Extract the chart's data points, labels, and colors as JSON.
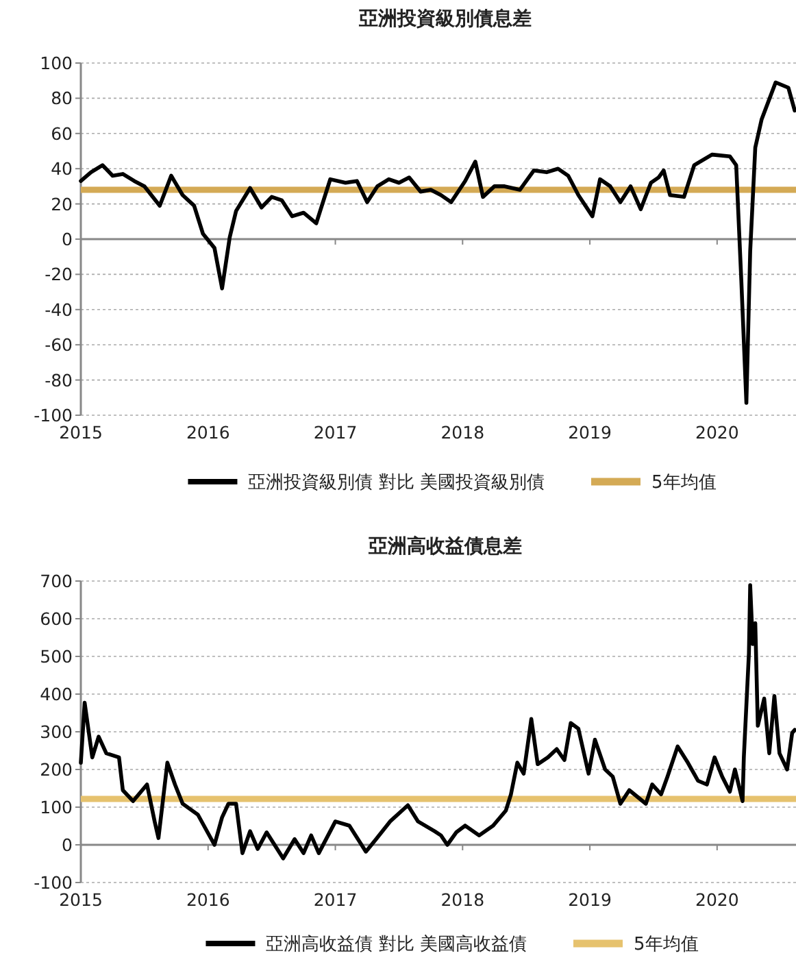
{
  "chart_data": [
    {
      "type": "line",
      "title": "亞洲投資級別債息差",
      "series": [
        {
          "name": "亞洲投資級別債 對比 美國投資級別債",
          "color": "#000000",
          "x": [
            2015.0,
            2015.08,
            2015.17,
            2015.25,
            2015.33,
            2015.42,
            2015.5,
            2015.62,
            2015.71,
            2015.8,
            2015.89,
            2015.96,
            2016.05,
            2016.11,
            2016.17,
            2016.22,
            2016.33,
            2016.42,
            2016.5,
            2016.58,
            2016.66,
            2016.75,
            2016.85,
            2016.96,
            2017.08,
            2017.17,
            2017.25,
            2017.33,
            2017.42,
            2017.5,
            2017.58,
            2017.67,
            2017.75,
            2017.83,
            2017.91,
            2018.02,
            2018.1,
            2018.16,
            2018.25,
            2018.33,
            2018.45,
            2018.56,
            2018.66,
            2018.75,
            2018.83,
            2018.91,
            2019.02,
            2019.08,
            2019.16,
            2019.24,
            2019.32,
            2019.4,
            2019.48,
            2019.54,
            2019.58,
            2019.63,
            2019.74,
            2019.82,
            2019.96,
            2020.1,
            2020.15,
            2020.19,
            2020.23,
            2020.26,
            2020.3,
            2020.35,
            2020.46,
            2020.56,
            2020.61
          ],
          "values": [
            33,
            38,
            42,
            36,
            37,
            33,
            30,
            19,
            36,
            25,
            19,
            3,
            -5,
            -28,
            1,
            16,
            29,
            18,
            24,
            22,
            13,
            15,
            9,
            34,
            32,
            33,
            21,
            30,
            34,
            32,
            35,
            27,
            28,
            25,
            21,
            33,
            44,
            24,
            30,
            30,
            28,
            39,
            38,
            40,
            36,
            25,
            13,
            34,
            30,
            21,
            30,
            17,
            32,
            35,
            39,
            25,
            24,
            42,
            48,
            47,
            42,
            -23,
            -93,
            -7,
            52,
            68,
            89,
            86,
            73
          ]
        }
      ],
      "ref_lines": [
        {
          "axis": "y",
          "value": 28,
          "label": "5年均值",
          "color": "#d4aa55"
        }
      ],
      "xlim": [
        2015,
        2020.62
      ],
      "xticks": [
        2015,
        2016,
        2017,
        2018,
        2019,
        2020
      ],
      "ylim": [
        -100,
        100
      ],
      "yticks": [
        -100,
        -80,
        -60,
        -40,
        -20,
        0,
        20,
        40,
        60,
        80,
        100
      ],
      "grid": "y",
      "legend": "bottom",
      "line_style": "solid"
    },
    {
      "type": "line",
      "title": "亞洲高收益債息差",
      "series": [
        {
          "name": "亞洲高收益債 對比 美國高收益債",
          "color": "#000000",
          "x": [
            2015.0,
            2015.03,
            2015.09,
            2015.14,
            2015.2,
            2015.3,
            2015.33,
            2015.41,
            2015.52,
            2015.58,
            2015.61,
            2015.68,
            2015.74,
            2015.8,
            2015.92,
            2016.05,
            2016.11,
            2016.16,
            2016.22,
            2016.27,
            2016.33,
            2016.39,
            2016.46,
            2016.59,
            2016.68,
            2016.75,
            2016.81,
            2016.87,
            2017.0,
            2017.11,
            2017.24,
            2017.32,
            2017.43,
            2017.57,
            2017.65,
            2017.78,
            2017.83,
            2017.88,
            2017.95,
            2018.02,
            2018.13,
            2018.24,
            2018.34,
            2018.38,
            2018.43,
            2018.48,
            2018.54,
            2018.59,
            2018.67,
            2018.74,
            2018.8,
            2018.85,
            2018.91,
            2018.99,
            2019.04,
            2019.12,
            2019.18,
            2019.24,
            2019.31,
            2019.44,
            2019.49,
            2019.56,
            2019.61,
            2019.69,
            2019.77,
            2019.85,
            2019.92,
            2019.98,
            2020.04,
            2020.1,
            2020.14,
            2020.2,
            2020.21,
            2020.25,
            2020.26,
            2020.28,
            2020.3,
            2020.32,
            2020.37,
            2020.41,
            2020.45,
            2020.49,
            2020.55,
            2020.59,
            2020.61
          ],
          "values": [
            218,
            377,
            232,
            287,
            243,
            232,
            145,
            116,
            160,
            62,
            18,
            218,
            160,
            109,
            80,
            0,
            73,
            109,
            109,
            -22,
            36,
            -11,
            33,
            -36,
            15,
            -22,
            25,
            -22,
            62,
            51,
            -18,
            15,
            62,
            105,
            62,
            36,
            25,
            0,
            33,
            51,
            25,
            51,
            91,
            134,
            218,
            189,
            334,
            214,
            232,
            254,
            225,
            323,
            308,
            189,
            279,
            200,
            181,
            109,
            145,
            109,
            160,
            134,
            181,
            261,
            218,
            170,
            160,
            232,
            181,
            141,
            200,
            116,
            232,
            508,
            689,
            533,
            588,
            316,
            388,
            243,
            395,
            243,
            200,
            297,
            305
          ]
        }
      ],
      "ref_lines": [
        {
          "axis": "y",
          "value": 122,
          "label": "5年均值",
          "color": "#e6c26e"
        }
      ],
      "xlim": [
        2015,
        2020.62
      ],
      "xticks": [
        2015,
        2016,
        2017,
        2018,
        2019,
        2020
      ],
      "ylim": [
        -100,
        700
      ],
      "yticks": [
        -100,
        0,
        100,
        200,
        300,
        400,
        500,
        600,
        700
      ],
      "grid": "y",
      "legend": "bottom",
      "line_style": "solid"
    }
  ]
}
